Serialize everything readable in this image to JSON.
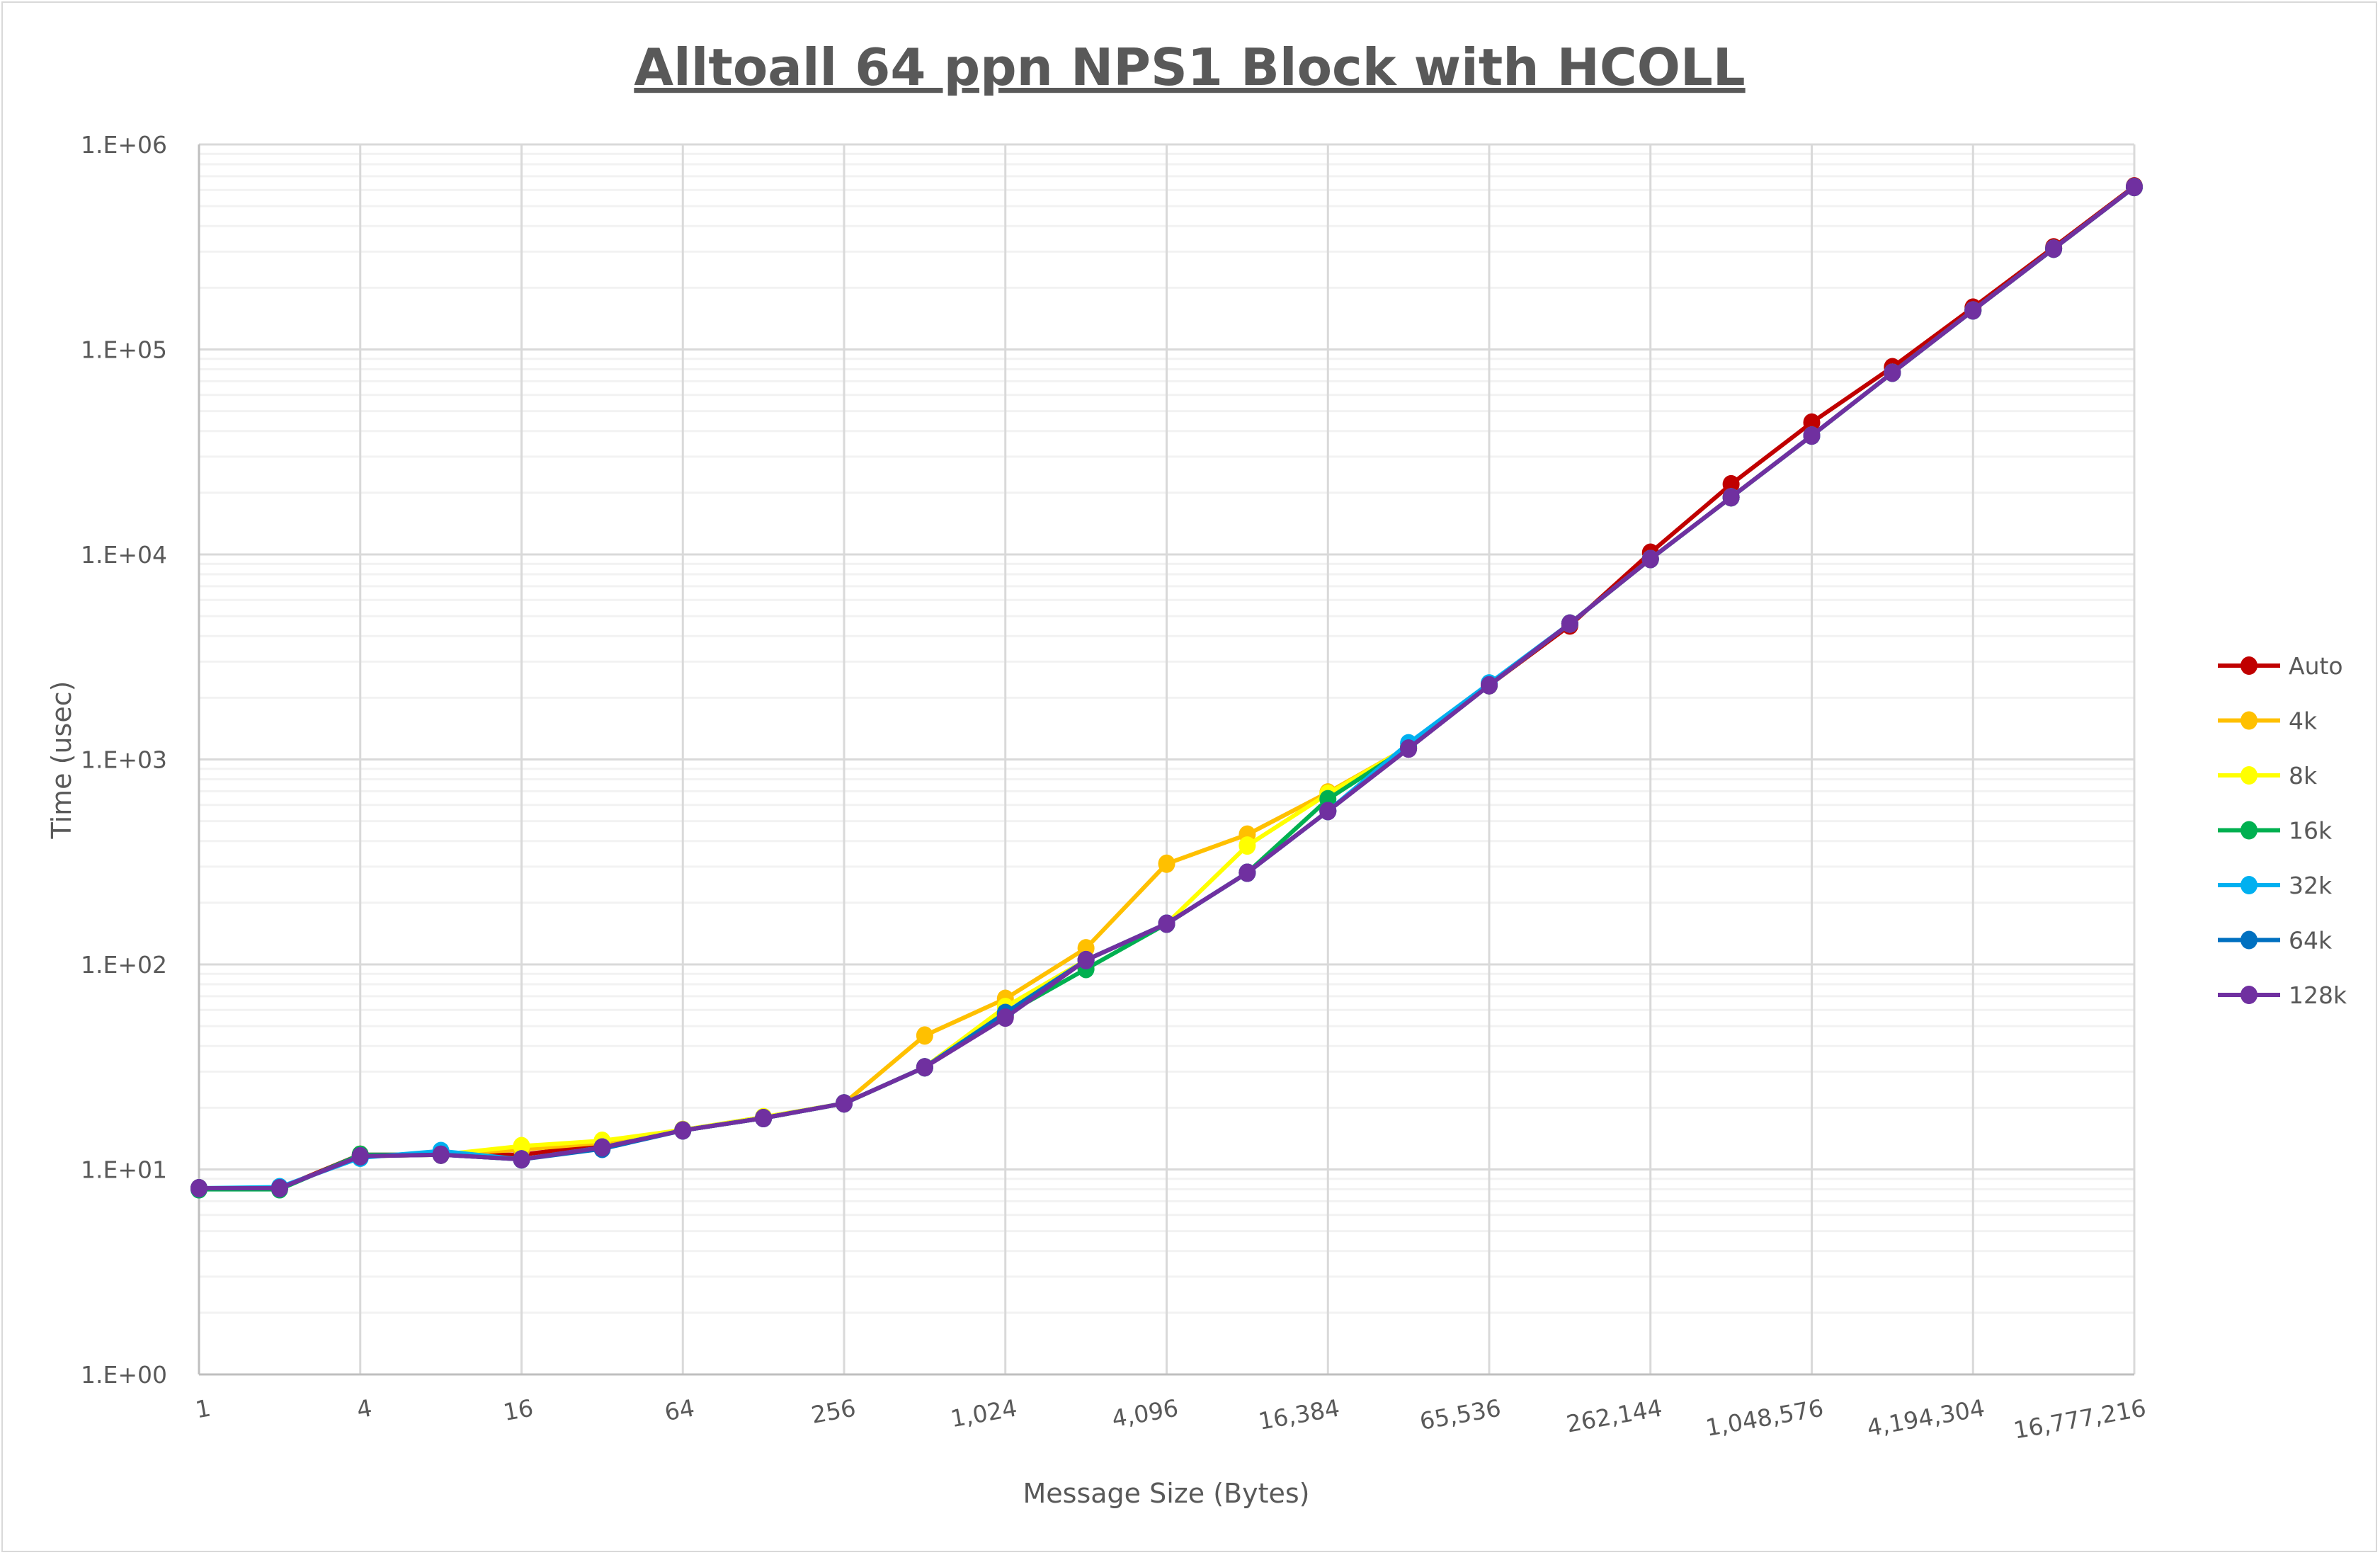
{
  "chart_data": {
    "type": "line",
    "title": "Alltoall 64 ppn NPS1 Block with HCOLL",
    "xlabel": "Message Size (Bytes)",
    "ylabel": "Time (usec)",
    "x_scale": "log2",
    "y_scale": "log10",
    "xlim": [
      1,
      16777216
    ],
    "ylim": [
      1,
      1000000
    ],
    "grid": true,
    "legend_position": "right",
    "x_tick_labels": [
      "1",
      "4",
      "16",
      "64",
      "256",
      "1,024",
      "4,096",
      "16,384",
      "65,536",
      "262,144",
      "1,048,576",
      "4,194,304",
      "16,777,216"
    ],
    "y_tick_labels": [
      "1.E+00",
      "1.E+01",
      "1.E+02",
      "1.E+03",
      "1.E+04",
      "1.E+05",
      "1.E+06"
    ],
    "x": [
      1,
      2,
      4,
      8,
      16,
      32,
      64,
      128,
      256,
      512,
      1024,
      2048,
      4096,
      8192,
      16384,
      32768,
      65536,
      131072,
      262144,
      524288,
      1048576,
      2097152,
      4194304,
      8388608,
      16777216
    ],
    "series": [
      {
        "name": "Auto",
        "color": "#c00000",
        "values": [
          8.1,
          8.1,
          11.8,
          11.8,
          11.8,
          13.2,
          15.5,
          17.8,
          21,
          31.5,
          56,
          105,
          158,
          280,
          560,
          1130,
          2300,
          4500,
          10200,
          22000,
          44000,
          82000,
          160000,
          315000,
          625000
        ]
      },
      {
        "name": "4k",
        "color": "#ffc000",
        "values": [
          8.1,
          8.1,
          11.6,
          11.8,
          12.5,
          13.5,
          15.5,
          17.8,
          21,
          45,
          68,
          120,
          310,
          430,
          690,
          1150,
          2300,
          4600,
          9500,
          19000,
          38000,
          77000,
          155000,
          310000,
          620000
        ]
      },
      {
        "name": "8k",
        "color": "#ffff00",
        "values": [
          8.1,
          8.1,
          11.6,
          11.8,
          13,
          13.8,
          15.6,
          18,
          21,
          31.5,
          62,
          105,
          158,
          380,
          680,
          1150,
          2300,
          4600,
          9500,
          19000,
          38000,
          77000,
          155000,
          310000,
          620000
        ]
      },
      {
        "name": "16k",
        "color": "#00b050",
        "values": [
          8,
          8,
          11.8,
          11.8,
          11.2,
          12.8,
          15.5,
          17.8,
          21,
          31.5,
          57,
          95,
          158,
          280,
          640,
          1150,
          2300,
          4600,
          9500,
          19000,
          38000,
          77000,
          155000,
          310000,
          620000
        ]
      },
      {
        "name": "32k",
        "color": "#00b0f0",
        "values": [
          8.1,
          8.2,
          11.4,
          12.3,
          11.2,
          12.8,
          15.5,
          17.8,
          21,
          31.5,
          57,
          105,
          158,
          280,
          560,
          1200,
          2350,
          4600,
          9500,
          19000,
          38000,
          77000,
          155000,
          310000,
          620000
        ]
      },
      {
        "name": "64k",
        "color": "#0070c0",
        "values": [
          8.1,
          8.1,
          11.6,
          11.8,
          11.2,
          12.6,
          15.5,
          17.8,
          21,
          31.5,
          58,
          105,
          158,
          280,
          560,
          1130,
          2300,
          4600,
          9500,
          19000,
          38000,
          77000,
          155000,
          310000,
          620000
        ]
      },
      {
        "name": "128k",
        "color": "#7030a0",
        "values": [
          8.1,
          8.1,
          11.6,
          11.8,
          11.2,
          12.8,
          15.5,
          17.8,
          21,
          31.5,
          55,
          105,
          158,
          280,
          560,
          1130,
          2300,
          4600,
          9500,
          19000,
          38000,
          77000,
          155000,
          310000,
          620000
        ]
      }
    ]
  }
}
